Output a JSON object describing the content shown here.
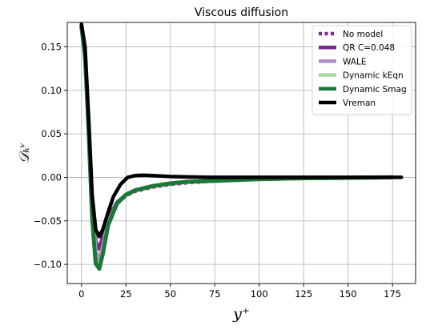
{
  "chart_data": {
    "type": "line",
    "title": "Viscous diffusion",
    "xlabel": "y⁺",
    "ylabel": "𝒟ₖᵛ",
    "xlim": [
      -8,
      188
    ],
    "ylim": [
      -0.122,
      0.178
    ],
    "xticks": [
      0,
      25,
      50,
      75,
      100,
      125,
      150,
      175
    ],
    "yticks": [
      -0.1,
      -0.05,
      0.0,
      0.05,
      0.1,
      0.15
    ],
    "xtick_labels": [
      "0",
      "25",
      "50",
      "75",
      "100",
      "125",
      "150",
      "175"
    ],
    "ytick_labels": [
      "−0.10",
      "−0.05",
      "0.00",
      "0.05",
      "0.10",
      "0.15"
    ],
    "grid": true,
    "legend_position": "upper right",
    "series": [
      {
        "name": "No model",
        "color": "#7b2d8b",
        "style": "dotted",
        "x": [
          0,
          2,
          4,
          6,
          8,
          10,
          12,
          15,
          20,
          25,
          30,
          40,
          50,
          60,
          75,
          100,
          125,
          150,
          175
        ],
        "y": [
          0.172,
          0.14,
          0.06,
          -0.03,
          -0.075,
          -0.083,
          -0.07,
          -0.048,
          -0.03,
          -0.021,
          -0.016,
          -0.011,
          -0.008,
          -0.006,
          -0.004,
          -0.002,
          -0.001,
          -0.0005,
          0.0
        ]
      },
      {
        "name": "QR C=0.048",
        "color": "#762a83",
        "style": "solid",
        "x": [
          0,
          2,
          4,
          6,
          8,
          10,
          12,
          15,
          20,
          25,
          30,
          40,
          50,
          60,
          75,
          100,
          125,
          150,
          175
        ],
        "y": [
          0.172,
          0.14,
          0.06,
          -0.03,
          -0.074,
          -0.082,
          -0.069,
          -0.047,
          -0.029,
          -0.02,
          -0.015,
          -0.01,
          -0.007,
          -0.005,
          -0.004,
          -0.002,
          -0.001,
          -0.0005,
          0.0
        ]
      },
      {
        "name": "WALE",
        "color": "#af8dc3",
        "style": "solid",
        "x": [
          0,
          2,
          4,
          6,
          8,
          10,
          12,
          15,
          20,
          25,
          30,
          40,
          50,
          60,
          75,
          100,
          125,
          150,
          175
        ],
        "y": [
          0.173,
          0.14,
          0.058,
          -0.035,
          -0.085,
          -0.095,
          -0.08,
          -0.052,
          -0.03,
          -0.02,
          -0.015,
          -0.01,
          -0.007,
          -0.005,
          -0.004,
          -0.002,
          -0.001,
          -0.0005,
          0.0
        ]
      },
      {
        "name": "Dynamic kEqn",
        "color": "#a6dba0",
        "style": "solid",
        "x": [
          0,
          2,
          4,
          6,
          8,
          10,
          12,
          15,
          20,
          25,
          30,
          40,
          50,
          60,
          75,
          100,
          125,
          150,
          175
        ],
        "y": [
          0.174,
          0.14,
          0.055,
          -0.045,
          -0.097,
          -0.104,
          -0.087,
          -0.055,
          -0.03,
          -0.02,
          -0.015,
          -0.01,
          -0.007,
          -0.005,
          -0.004,
          -0.002,
          -0.001,
          -0.0005,
          0.0
        ]
      },
      {
        "name": "Dynamic Smag",
        "color": "#1b7837",
        "style": "solid",
        "x": [
          0,
          2,
          4,
          6,
          8,
          10,
          12,
          15,
          20,
          25,
          30,
          40,
          50,
          60,
          75,
          100,
          125,
          150,
          175
        ],
        "y": [
          0.174,
          0.14,
          0.054,
          -0.047,
          -0.099,
          -0.105,
          -0.088,
          -0.055,
          -0.03,
          -0.02,
          -0.015,
          -0.01,
          -0.007,
          -0.005,
          -0.004,
          -0.002,
          -0.001,
          -0.0005,
          0.0
        ]
      },
      {
        "name": "Vreman",
        "color": "#000000",
        "style": "solid",
        "x": [
          0,
          2,
          4,
          6,
          8,
          10,
          12,
          15,
          18,
          22,
          26,
          30,
          35,
          40,
          50,
          60,
          75,
          100,
          125,
          150,
          180
        ],
        "y": [
          0.176,
          0.15,
          0.07,
          -0.02,
          -0.06,
          -0.068,
          -0.06,
          -0.04,
          -0.022,
          -0.008,
          0.0,
          0.002,
          0.0025,
          0.002,
          0.001,
          0.0005,
          0.0,
          0.0,
          0.0,
          0.0,
          0.0
        ]
      }
    ]
  }
}
